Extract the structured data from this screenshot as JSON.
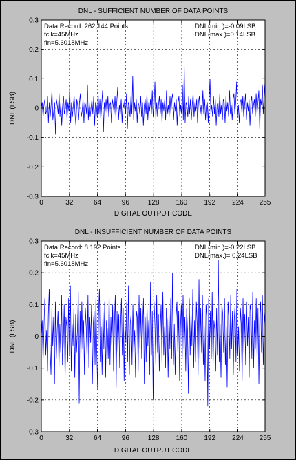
{
  "chart_data": [
    {
      "type": "line",
      "title": "DNL - SUFFICIENT NUMBER OF DATA POINTS",
      "xlabel": "DIGITAL OUTPUT CODE",
      "ylabel": "DNL (LSB)",
      "xlim": [
        0,
        255
      ],
      "ylim": [
        -0.3,
        0.3
      ],
      "xticks": [
        0,
        32,
        64,
        96,
        128,
        160,
        192,
        224,
        255
      ],
      "yticks": [
        -0.3,
        -0.2,
        -0.1,
        0,
        0.1,
        0.2,
        0.3
      ],
      "ytick_labels": [
        "-0.3",
        "-0.2",
        "-0.1",
        "0",
        "0.1",
        "0.2",
        "0.3"
      ],
      "grid": true,
      "line_color": "#0000ff",
      "annotations_left": [
        "Data Record: 262,144 Points",
        "fclk=45MHz",
        "fin=5.6018MHz"
      ],
      "annotations_right": [
        "DNL(min.)=-0.09LSB",
        "DNL(max.)=0.14LSB"
      ],
      "series": [
        {
          "values": [
            0.0,
            0.02,
            -0.03,
            0.01,
            0.03,
            -0.02,
            -0.01,
            0.04,
            -0.05,
            0.02,
            -0.03,
            0.01,
            0.06,
            -0.04,
            -0.01,
            0.02,
            -0.09,
            0.03,
            0.01,
            -0.02,
            0.05,
            -0.03,
            0.02,
            -0.06,
            0.01,
            0.04,
            -0.02,
            0.0,
            0.03,
            -0.04,
            0.02,
            -0.01,
            0.07,
            -0.05,
            0.02,
            -0.03,
            0.01,
            0.04,
            -0.02,
            -0.06,
            0.03,
            0.01,
            -0.04,
            0.02,
            0.05,
            -0.03,
            -0.01,
            0.03,
            -0.05,
            0.02,
            0.01,
            -0.02,
            0.08,
            -0.04,
            0.02,
            -0.03,
            0.0,
            0.03,
            -0.02,
            0.04,
            -0.06,
            0.02,
            0.01,
            -0.03,
            0.05,
            -0.02,
            0.03,
            -0.04,
            0.01,
            0.06,
            -0.08,
            0.02,
            -0.01,
            0.03,
            -0.02,
            0.04,
            -0.03,
            0.01,
            0.02,
            -0.05,
            0.03,
            0.01,
            -0.02,
            0.04,
            -0.03,
            0.02,
            0.07,
            -0.04,
            0.01,
            -0.02,
            0.03,
            -0.05,
            0.02,
            0.0,
            0.03,
            -0.02,
            0.05,
            -0.07,
            0.02,
            0.01,
            -0.03,
            0.04,
            -0.02,
            0.11,
            -0.04,
            0.02,
            -0.01,
            0.03,
            -0.05,
            0.02,
            0.01,
            -0.02,
            0.04,
            -0.03,
            0.02,
            -0.06,
            0.01,
            0.03,
            -0.02,
            0.05,
            -0.04,
            0.02,
            -0.01,
            0.03,
            -0.02,
            0.06,
            -0.03,
            0.01,
            0.09,
            -0.04,
            0.02,
            -0.03,
            0.01,
            0.04,
            -0.02,
            0.03,
            -0.05,
            0.02,
            -0.01,
            0.03,
            -0.04,
            0.06,
            -0.02,
            0.01,
            -0.03,
            0.04,
            -0.02,
            0.03,
            0.05,
            -0.04,
            0.02,
            -0.01,
            0.03,
            -0.06,
            0.02,
            0.04,
            -0.03,
            0.01,
            -0.02,
            0.08,
            -0.04,
            0.14,
            -0.05,
            0.02,
            0.01,
            -0.03,
            0.04,
            -0.02,
            0.03,
            -0.04,
            0.01,
            0.05,
            -0.03,
            0.02,
            -0.01,
            0.03,
            -0.05,
            0.02,
            0.04,
            -0.02,
            0.01,
            -0.03,
            0.06,
            -0.02,
            0.03,
            -0.04,
            0.01,
            0.02,
            -0.05,
            0.03,
            0.1,
            -0.02,
            0.01,
            -0.03,
            0.04,
            -0.02,
            0.03,
            -0.06,
            0.01,
            0.02,
            -0.03,
            0.05,
            -0.02,
            0.01,
            -0.04,
            0.03,
            0.02,
            -0.05,
            0.04,
            -0.01,
            0.02,
            -0.03,
            0.06,
            -0.02,
            0.01,
            -0.04,
            0.03,
            0.05,
            -0.02,
            0.02,
            0.09,
            -0.03,
            0.01,
            -0.05,
            0.02,
            0.03,
            -0.02,
            0.04,
            -0.03,
            0.01,
            0.05,
            -0.04,
            0.02,
            -0.01,
            0.03,
            -0.06,
            0.02,
            0.04,
            -0.02,
            0.01,
            0.03,
            -0.03,
            0.05,
            -0.02,
            0.02,
            0.06,
            -0.07,
            0.03,
            0.01,
            0.08,
            -0.02,
            0.04,
            0.09
          ]
        }
      ]
    },
    {
      "type": "line",
      "title": "DNL - INSUFFICIENT NUMBER OF DATA POINTS",
      "xlabel": "DIGITAL OUTPUT CODE",
      "ylabel": "DNL (LSB)",
      "xlim": [
        0,
        255
      ],
      "ylim": [
        -0.3,
        0.3
      ],
      "xticks": [
        0,
        32,
        64,
        96,
        128,
        160,
        192,
        224,
        255
      ],
      "yticks": [
        -0.3,
        -0.2,
        -0.1,
        0,
        0.1,
        0.2,
        0.3
      ],
      "ytick_labels": [
        "-0.3",
        "-0.2",
        "-0.1",
        "0",
        "0.1",
        "0.2",
        "0.3"
      ],
      "grid": true,
      "line_color": "#0000ff",
      "annotations_left": [
        "Data Record: 8,192 Points",
        "fclk=45MHz",
        "fin=5.6018MHz"
      ],
      "annotations_right": [
        "DNL(min.)=-0.22LSB",
        "DNL(max.)= 0.24LSB"
      ],
      "series": [
        {
          "values": [
            0.0,
            0.05,
            -0.08,
            0.03,
            0.12,
            -0.06,
            0.02,
            -0.11,
            0.07,
            0.15,
            -0.04,
            -0.12,
            0.09,
            -0.03,
            0.06,
            -0.15,
            0.11,
            -0.07,
            0.02,
            0.08,
            -0.1,
            0.04,
            -0.05,
            0.13,
            -0.09,
            -0.02,
            0.1,
            -0.14,
            0.06,
            0.03,
            -0.08,
            0.12,
            -0.06,
            0.16,
            -0.11,
            0.04,
            -0.03,
            0.09,
            -0.13,
            0.07,
            -0.05,
            0.02,
            0.14,
            -0.21,
            0.08,
            -0.06,
            0.11,
            -0.04,
            0.05,
            -0.12,
            0.09,
            0.03,
            -0.07,
            0.13,
            -0.1,
            0.06,
            -0.02,
            0.1,
            -0.15,
            0.04,
            0.08,
            -0.09,
            0.12,
            -0.05,
            -0.17,
            0.07,
            0.15,
            -0.08,
            0.03,
            -0.12,
            0.09,
            -0.04,
            0.11,
            -0.13,
            0.05,
            0.02,
            -0.07,
            0.14,
            -0.09,
            0.06,
            -0.03,
            0.1,
            -0.11,
            0.04,
            0.13,
            -0.16,
            0.08,
            -0.05,
            0.07,
            -0.1,
            0.03,
            0.12,
            -0.06,
            0.09,
            -0.14,
            0.05,
            -0.02,
            0.11,
            -0.08,
            0.16,
            -0.12,
            0.04,
            0.07,
            -0.09,
            0.1,
            -0.05,
            0.02,
            -0.13,
            0.08,
            0.06,
            -0.11,
            0.13,
            -0.04,
            0.09,
            -0.07,
            0.03,
            0.12,
            -0.15,
            0.06,
            -0.08,
            0.1,
            -0.03,
            0.05,
            -0.12,
            0.17,
            -0.06,
            0.08,
            -0.2,
            0.11,
            0.04,
            -0.09,
            0.13,
            -0.05,
            0.07,
            -0.11,
            0.02,
            0.1,
            -0.08,
            0.14,
            -0.06,
            0.03,
            -0.1,
            0.09,
            0.05,
            -0.13,
            0.08,
            -0.04,
            0.12,
            -0.07,
            0.2,
            -0.09,
            0.04,
            -0.12,
            0.06,
            0.11,
            -0.05,
            0.08,
            -0.14,
            0.03,
            0.1,
            -0.07,
            0.13,
            -0.04,
            0.06,
            -0.11,
            0.09,
            0.02,
            -0.18,
            0.12,
            -0.06,
            0.08,
            -0.03,
            0.15,
            -0.1,
            0.05,
            -0.08,
            0.11,
            0.04,
            -0.12,
            0.18,
            -0.07,
            0.09,
            -0.05,
            0.13,
            -0.09,
            0.03,
            -0.14,
            0.1,
            0.06,
            -0.22,
            0.12,
            -0.04,
            0.08,
            -0.07,
            0.14,
            -0.1,
            0.05,
            0.02,
            -0.11,
            0.09,
            -0.06,
            0.24,
            -0.08,
            0.04,
            -0.13,
            0.1,
            0.07,
            -0.05,
            0.12,
            -0.09,
            0.03,
            -0.16,
            0.11,
            0.06,
            -0.07,
            0.13,
            -0.04,
            0.08,
            -0.12,
            0.05,
            0.1,
            -0.08,
            0.15,
            -0.06,
            0.03,
            -0.11,
            0.09,
            0.04,
            -0.14,
            0.12,
            -0.05,
            0.07,
            -0.09,
            0.11,
            -0.03,
            0.06,
            -0.13,
            0.1,
            0.08,
            -0.07,
            0.14,
            -0.1,
            0.05,
            -0.04,
            0.12,
            -0.08,
            0.09,
            -0.15,
            0.06,
            0.11,
            -0.05,
            0.13,
            -0.09,
            0.04,
            0.08
          ]
        }
      ]
    }
  ]
}
